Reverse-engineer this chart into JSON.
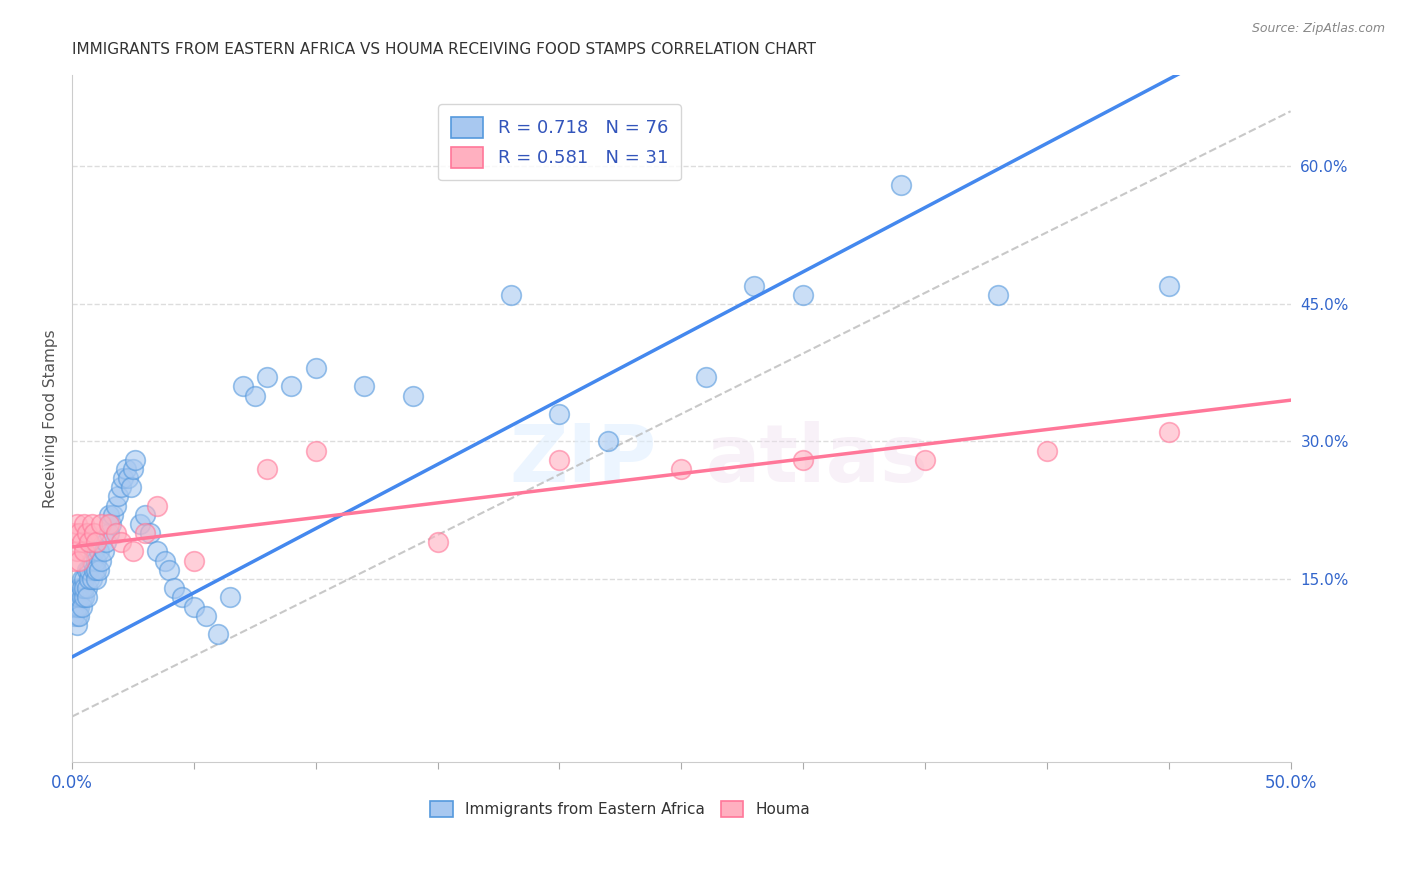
{
  "title": "IMMIGRANTS FROM EASTERN AFRICA VS HOUMA RECEIVING FOOD STAMPS CORRELATION CHART",
  "source": "Source: ZipAtlas.com",
  "xlabel_blue": "Immigrants from Eastern Africa",
  "xlabel_pink": "Houma",
  "ylabel": "Receiving Food Stamps",
  "xlim": [
    0.0,
    0.5
  ],
  "ylim": [
    -0.05,
    0.7
  ],
  "xtick_values": [
    0.0,
    0.05,
    0.1,
    0.15,
    0.2,
    0.25,
    0.3,
    0.35,
    0.4,
    0.45,
    0.5
  ],
  "ytick_values_right": [
    0.15,
    0.3,
    0.45,
    0.6
  ],
  "ytick_labels_right": [
    "15.0%",
    "30.0%",
    "45.0%",
    "60.0%"
  ],
  "R_blue": 0.718,
  "N_blue": 76,
  "R_pink": 0.581,
  "N_pink": 31,
  "blue_fill": "#A8C8F0",
  "blue_edge": "#5599DD",
  "pink_fill": "#FFB0C0",
  "pink_edge": "#FF7799",
  "line_blue": "#4488EE",
  "line_pink": "#FF7799",
  "dashed_line_color": "#BBBBBB",
  "grid_color": "#DDDDDD",
  "blue_scatter_x": [
    0.001,
    0.001,
    0.001,
    0.002,
    0.002,
    0.002,
    0.002,
    0.003,
    0.003,
    0.003,
    0.003,
    0.004,
    0.004,
    0.004,
    0.004,
    0.005,
    0.005,
    0.005,
    0.006,
    0.006,
    0.006,
    0.007,
    0.007,
    0.008,
    0.008,
    0.009,
    0.009,
    0.01,
    0.01,
    0.01,
    0.011,
    0.011,
    0.012,
    0.013,
    0.014,
    0.015,
    0.015,
    0.016,
    0.017,
    0.018,
    0.019,
    0.02,
    0.021,
    0.022,
    0.023,
    0.024,
    0.025,
    0.026,
    0.028,
    0.03,
    0.032,
    0.035,
    0.038,
    0.04,
    0.042,
    0.045,
    0.05,
    0.055,
    0.06,
    0.065,
    0.07,
    0.075,
    0.08,
    0.09,
    0.1,
    0.12,
    0.14,
    0.18,
    0.2,
    0.22,
    0.26,
    0.28,
    0.3,
    0.34,
    0.38,
    0.45
  ],
  "blue_scatter_y": [
    0.12,
    0.13,
    0.11,
    0.11,
    0.13,
    0.1,
    0.12,
    0.14,
    0.12,
    0.13,
    0.11,
    0.13,
    0.15,
    0.12,
    0.14,
    0.13,
    0.15,
    0.14,
    0.14,
    0.16,
    0.13,
    0.15,
    0.16,
    0.15,
    0.17,
    0.16,
    0.18,
    0.15,
    0.17,
    0.16,
    0.18,
    0.16,
    0.17,
    0.18,
    0.19,
    0.2,
    0.22,
    0.21,
    0.22,
    0.23,
    0.24,
    0.25,
    0.26,
    0.27,
    0.26,
    0.25,
    0.27,
    0.28,
    0.21,
    0.22,
    0.2,
    0.18,
    0.17,
    0.16,
    0.14,
    0.13,
    0.12,
    0.11,
    0.09,
    0.13,
    0.36,
    0.35,
    0.37,
    0.36,
    0.38,
    0.36,
    0.35,
    0.46,
    0.33,
    0.3,
    0.37,
    0.47,
    0.46,
    0.58,
    0.46,
    0.47
  ],
  "pink_scatter_x": [
    0.001,
    0.001,
    0.002,
    0.002,
    0.003,
    0.003,
    0.004,
    0.005,
    0.005,
    0.006,
    0.007,
    0.008,
    0.009,
    0.01,
    0.012,
    0.015,
    0.018,
    0.02,
    0.025,
    0.03,
    0.035,
    0.05,
    0.08,
    0.1,
    0.15,
    0.2,
    0.25,
    0.3,
    0.35,
    0.4,
    0.45
  ],
  "pink_scatter_y": [
    0.17,
    0.2,
    0.18,
    0.21,
    0.17,
    0.2,
    0.19,
    0.21,
    0.18,
    0.2,
    0.19,
    0.21,
    0.2,
    0.19,
    0.21,
    0.21,
    0.2,
    0.19,
    0.18,
    0.2,
    0.23,
    0.17,
    0.27,
    0.29,
    0.19,
    0.28,
    0.27,
    0.28,
    0.28,
    0.29,
    0.31
  ],
  "blue_line_x0": 0.0,
  "blue_line_y0": 0.065,
  "blue_line_x1": 0.3,
  "blue_line_y1": 0.485,
  "pink_line_x0": 0.0,
  "pink_line_y0": 0.185,
  "pink_line_x1": 0.5,
  "pink_line_y1": 0.345
}
